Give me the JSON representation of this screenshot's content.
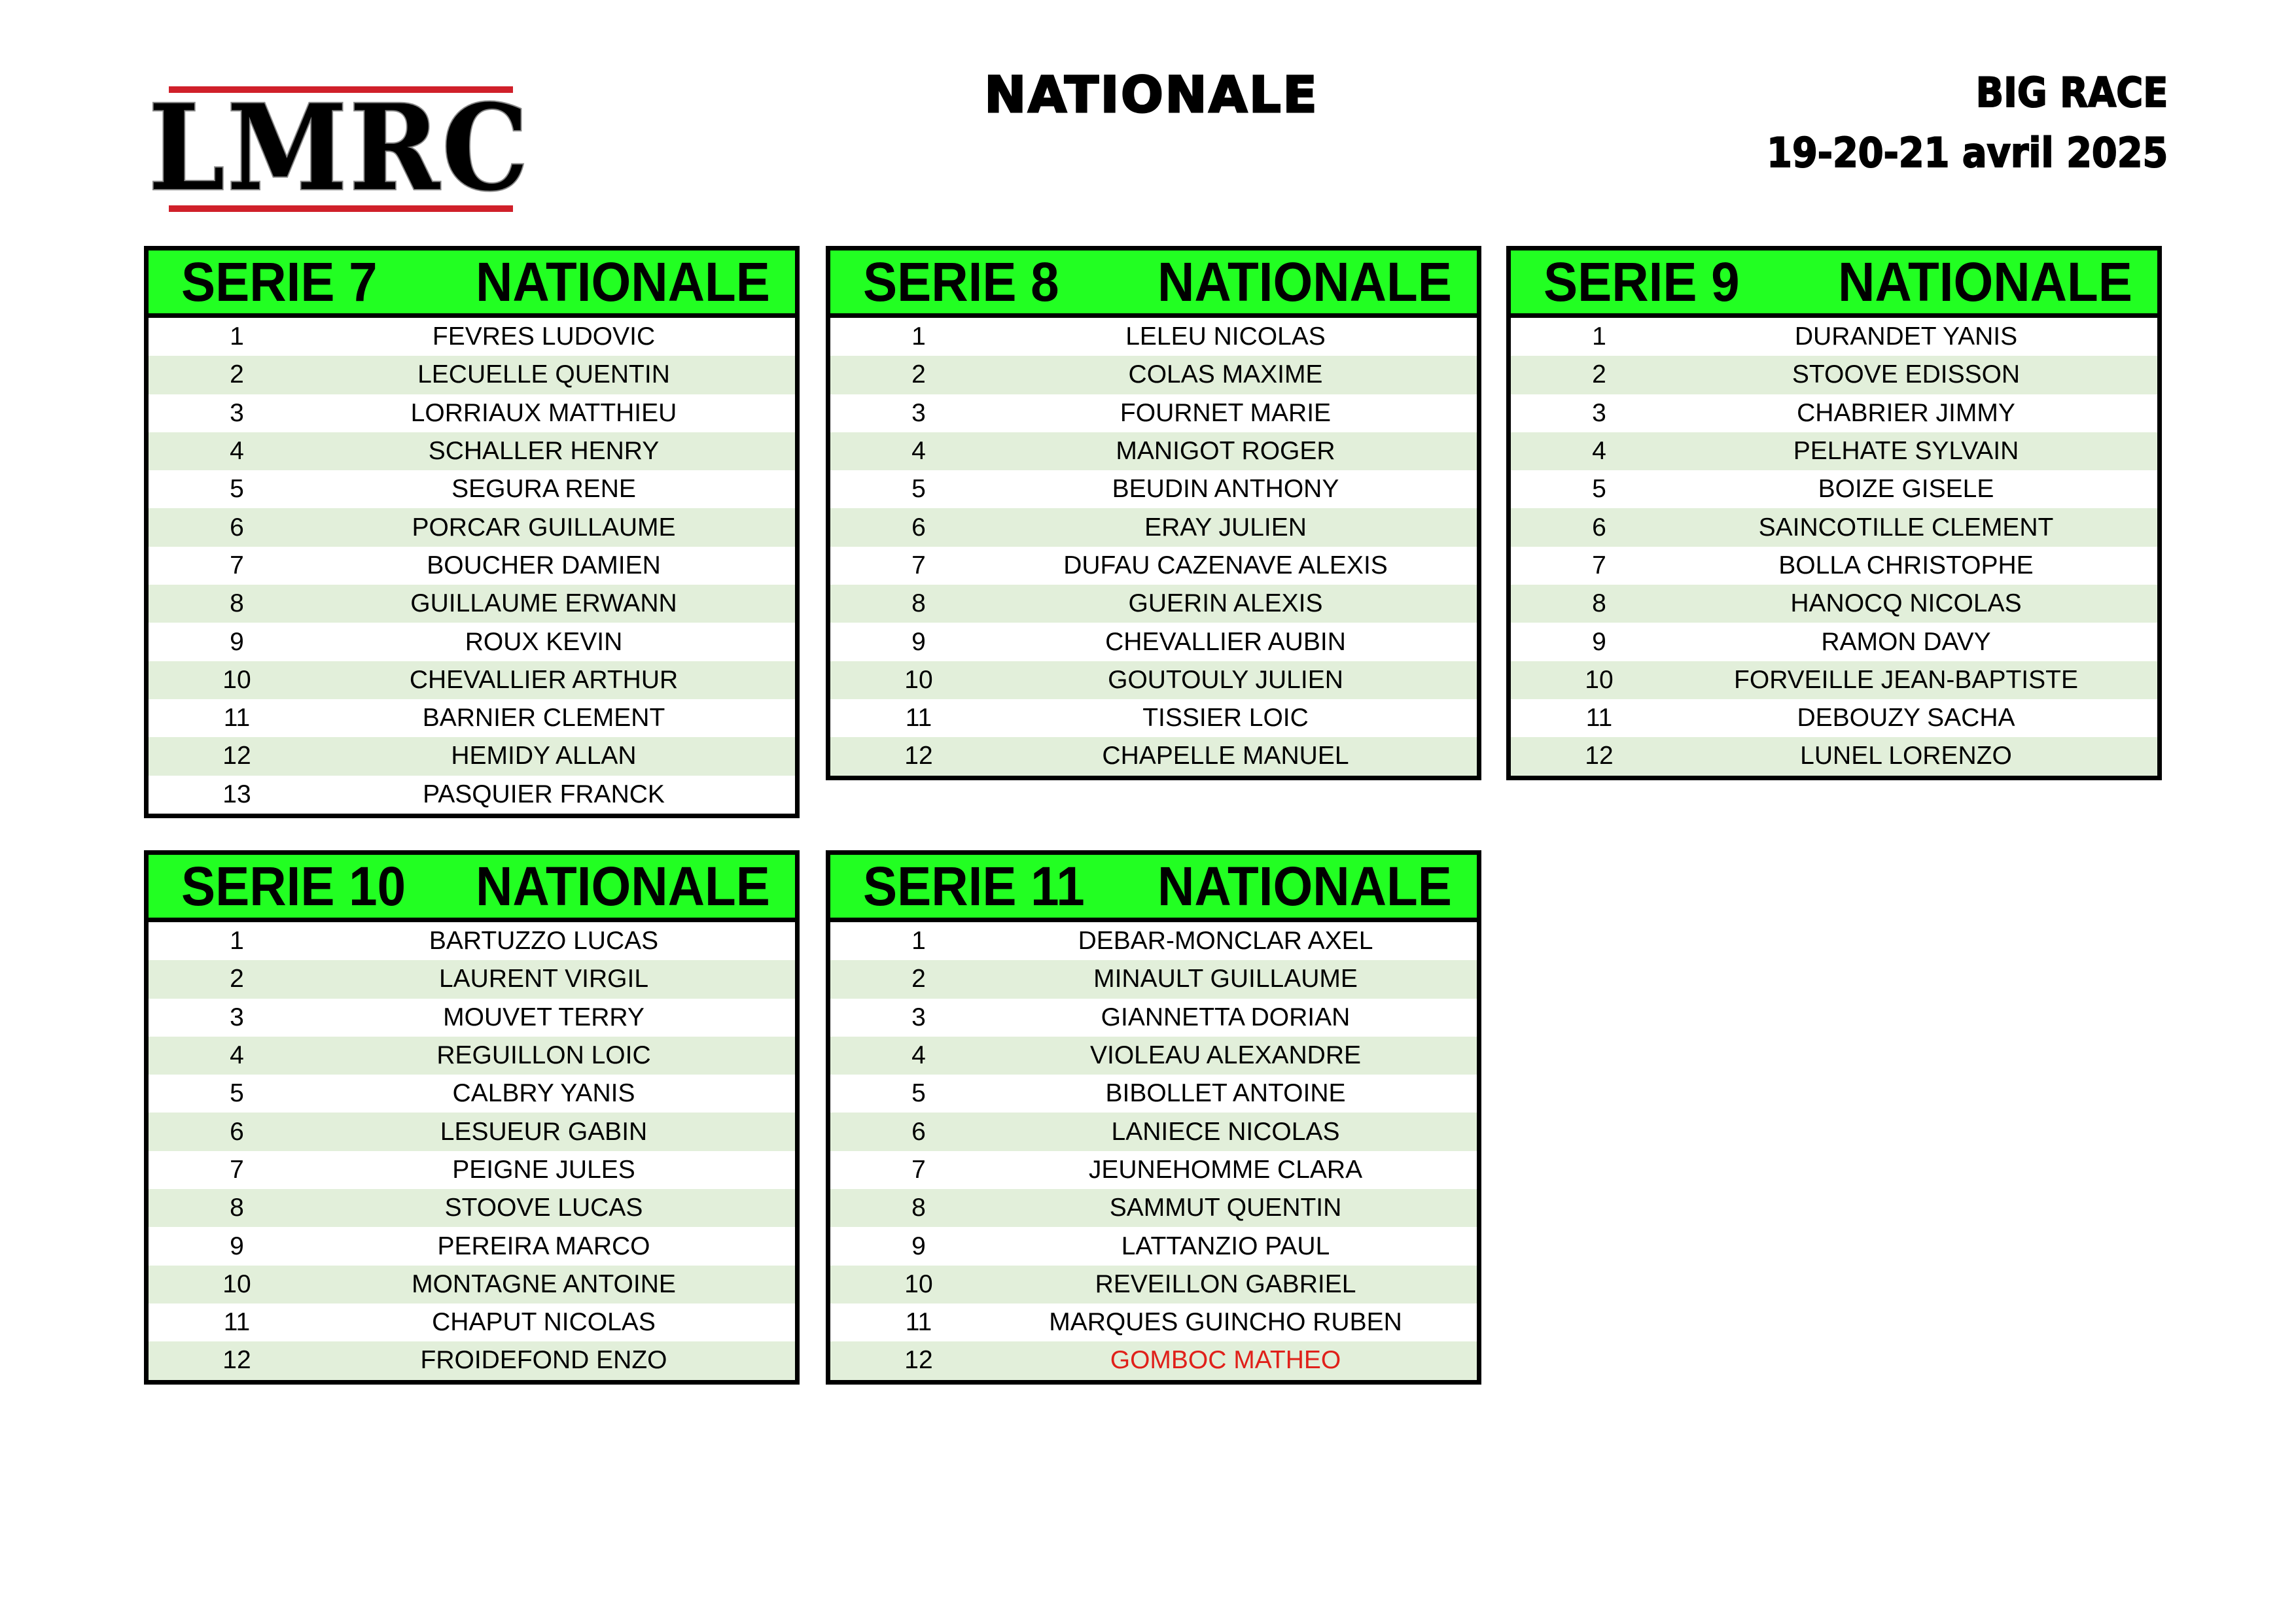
{
  "logo": {
    "text": "LMRC",
    "accent_color": "#d0202a"
  },
  "title": "NATIONALE",
  "event": {
    "name": "BIG RACE",
    "dates": "19-20-21 avril 2025"
  },
  "colors": {
    "header_bg": "#22ff22",
    "stripe": "#e2efda",
    "highlight": "#e0201a"
  },
  "series": [
    {
      "label": "SERIE 7",
      "category": "NATIONALE",
      "riders": [
        {
          "num": "1",
          "name": "FEVRES LUDOVIC"
        },
        {
          "num": "2",
          "name": "LECUELLE QUENTIN"
        },
        {
          "num": "3",
          "name": "LORRIAUX MATTHIEU"
        },
        {
          "num": "4",
          "name": "SCHALLER HENRY"
        },
        {
          "num": "5",
          "name": "SEGURA RENE"
        },
        {
          "num": "6",
          "name": "PORCAR GUILLAUME"
        },
        {
          "num": "7",
          "name": "BOUCHER DAMIEN"
        },
        {
          "num": "8",
          "name": "GUILLAUME ERWANN"
        },
        {
          "num": "9",
          "name": "ROUX KEVIN"
        },
        {
          "num": "10",
          "name": "CHEVALLIER ARTHUR"
        },
        {
          "num": "11",
          "name": "BARNIER CLEMENT"
        },
        {
          "num": "12",
          "name": "HEMIDY ALLAN"
        },
        {
          "num": "13",
          "name": "PASQUIER FRANCK"
        }
      ]
    },
    {
      "label": "SERIE 8",
      "category": "NATIONALE",
      "riders": [
        {
          "num": "1",
          "name": "LELEU NICOLAS"
        },
        {
          "num": "2",
          "name": "COLAS MAXIME"
        },
        {
          "num": "3",
          "name": "FOURNET MARIE"
        },
        {
          "num": "4",
          "name": "MANIGOT ROGER"
        },
        {
          "num": "5",
          "name": "BEUDIN ANTHONY"
        },
        {
          "num": "6",
          "name": "ERAY JULIEN"
        },
        {
          "num": "7",
          "name": "DUFAU CAZENAVE ALEXIS"
        },
        {
          "num": "8",
          "name": "GUERIN ALEXIS"
        },
        {
          "num": "9",
          "name": "CHEVALLIER AUBIN"
        },
        {
          "num": "10",
          "name": "GOUTOULY JULIEN"
        },
        {
          "num": "11",
          "name": "TISSIER LOIC"
        },
        {
          "num": "12",
          "name": "CHAPELLE MANUEL"
        }
      ]
    },
    {
      "label": "SERIE 9",
      "category": "NATIONALE",
      "riders": [
        {
          "num": "1",
          "name": "DURANDET YANIS"
        },
        {
          "num": "2",
          "name": "STOOVE EDISSON"
        },
        {
          "num": "3",
          "name": "CHABRIER JIMMY"
        },
        {
          "num": "4",
          "name": "PELHATE SYLVAIN"
        },
        {
          "num": "5",
          "name": "BOIZE GISELE"
        },
        {
          "num": "6",
          "name": "SAINCOTILLE CLEMENT"
        },
        {
          "num": "7",
          "name": "BOLLA CHRISTOPHE"
        },
        {
          "num": "8",
          "name": "HANOCQ NICOLAS"
        },
        {
          "num": "9",
          "name": "RAMON DAVY"
        },
        {
          "num": "10",
          "name": "FORVEILLE JEAN-BAPTISTE"
        },
        {
          "num": "11",
          "name": "DEBOUZY SACHA"
        },
        {
          "num": "12",
          "name": "LUNEL LORENZO"
        }
      ]
    },
    {
      "label": "SERIE 10",
      "category": "NATIONALE",
      "riders": [
        {
          "num": "1",
          "name": "BARTUZZO LUCAS"
        },
        {
          "num": "2",
          "name": "LAURENT VIRGIL"
        },
        {
          "num": "3",
          "name": "MOUVET TERRY"
        },
        {
          "num": "4",
          "name": "REGUILLON LOIC"
        },
        {
          "num": "5",
          "name": "CALBRY YANIS"
        },
        {
          "num": "6",
          "name": "LESUEUR GABIN"
        },
        {
          "num": "7",
          "name": "PEIGNE JULES"
        },
        {
          "num": "8",
          "name": "STOOVE LUCAS"
        },
        {
          "num": "9",
          "name": "PEREIRA MARCO"
        },
        {
          "num": "10",
          "name": "MONTAGNE ANTOINE"
        },
        {
          "num": "11",
          "name": "CHAPUT NICOLAS"
        },
        {
          "num": "12",
          "name": "FROIDEFOND ENZO"
        }
      ]
    },
    {
      "label": "SERIE 11",
      "category": "NATIONALE",
      "riders": [
        {
          "num": "1",
          "name": "DEBAR-MONCLAR AXEL"
        },
        {
          "num": "2",
          "name": "MINAULT GUILLAUME"
        },
        {
          "num": "3",
          "name": "GIANNETTA DORIAN"
        },
        {
          "num": "4",
          "name": "VIOLEAU ALEXANDRE"
        },
        {
          "num": "5",
          "name": "BIBOLLET ANTOINE"
        },
        {
          "num": "6",
          "name": "LANIECE NICOLAS"
        },
        {
          "num": "7",
          "name": "JEUNEHOMME CLARA"
        },
        {
          "num": "8",
          "name": "SAMMUT QUENTIN"
        },
        {
          "num": "9",
          "name": "LATTANZIO PAUL"
        },
        {
          "num": "10",
          "name": "REVEILLON GABRIEL"
        },
        {
          "num": "11",
          "name": "MARQUES GUINCHO RUBEN"
        },
        {
          "num": "12",
          "name": "GOMBOC MATHEO",
          "highlight": true
        }
      ]
    }
  ]
}
